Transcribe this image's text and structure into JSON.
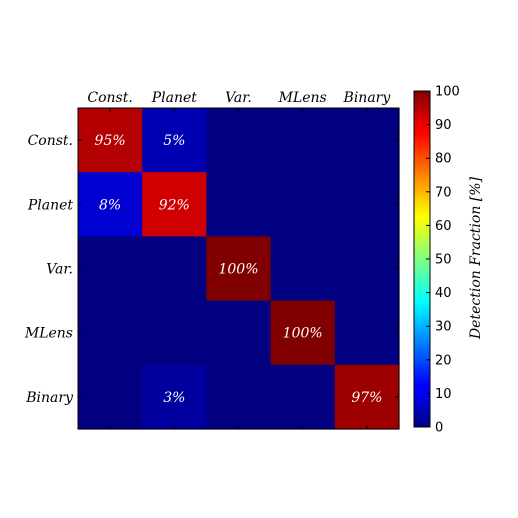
{
  "chart_data": {
    "type": "heatmap",
    "x_categories": [
      "Const.",
      "Planet",
      "Var.",
      "MLens",
      "Binary"
    ],
    "y_categories": [
      "Const.",
      "Planet",
      "Var.",
      "MLens",
      "Binary"
    ],
    "values": [
      [
        95,
        5,
        0,
        0,
        0
      ],
      [
        8,
        92,
        0,
        0,
        0
      ],
      [
        0,
        0,
        100,
        0,
        0
      ],
      [
        0,
        0,
        0,
        100,
        0
      ],
      [
        0,
        3,
        0,
        0,
        97
      ]
    ],
    "cell_labels": [
      [
        "95%",
        "5%",
        "",
        "",
        ""
      ],
      [
        "8%",
        "92%",
        "",
        "",
        ""
      ],
      [
        "",
        "",
        "100%",
        "",
        ""
      ],
      [
        "",
        "",
        "",
        "100%",
        ""
      ],
      [
        "",
        "3%",
        "",
        "",
        "97%"
      ]
    ],
    "colorbar": {
      "label": "Detection Fraction [%]",
      "range": [
        0,
        100
      ],
      "ticks": [
        0,
        10,
        20,
        30,
        40,
        50,
        60,
        70,
        80,
        90,
        100
      ],
      "tick_labels": [
        "0",
        "10",
        "20",
        "30",
        "40",
        "50",
        "60",
        "70",
        "80",
        "90",
        "100"
      ],
      "colormap": "jet"
    },
    "x_axis_position": "top",
    "grid": false,
    "title": "",
    "xlabel": "",
    "ylabel": ""
  }
}
